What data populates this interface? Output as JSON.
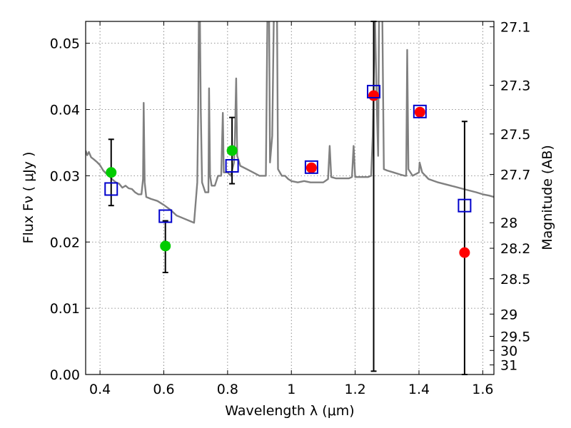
{
  "chart_data": {
    "type": "scatter",
    "xlabel": "Wavelength  λ (μm)",
    "ylabel": "Flux  Fν  ( μJy )",
    "y2label": "Magnitude (AB)",
    "xlim": [
      0.355,
      1.635
    ],
    "ylim": [
      0.0,
      0.0533
    ],
    "x_ticks": [
      "0.4",
      "0.6",
      "0.8",
      "1",
      "1.2",
      "1.4",
      "1.6"
    ],
    "y_ticks": [
      "0.00",
      "0.01",
      "0.02",
      "0.03",
      "0.04",
      "0.05"
    ],
    "y2_ticks": [
      "27.1",
      "27.3",
      "27.5",
      "27.7",
      "28",
      "28.2",
      "28.5",
      "29",
      "29.5",
      "30",
      "31"
    ],
    "grid": true,
    "colors": {
      "model": "#808080",
      "hst_detection": "#00cc00",
      "ground_detection": "#ff0000",
      "model_photometry": "#0000cc",
      "errorbar": "#000000"
    },
    "model_spectrum": [
      [
        0.355,
        0.0338
      ],
      [
        0.36,
        0.0331
      ],
      [
        0.365,
        0.0336
      ],
      [
        0.372,
        0.0328
      ],
      [
        0.38,
        0.0325
      ],
      [
        0.39,
        0.0321
      ],
      [
        0.4,
        0.0316
      ],
      [
        0.41,
        0.0308
      ],
      [
        0.42,
        0.0303
      ],
      [
        0.43,
        0.0299
      ],
      [
        0.44,
        0.0294
      ],
      [
        0.45,
        0.029
      ],
      [
        0.46,
        0.0288
      ],
      [
        0.47,
        0.0282
      ],
      [
        0.48,
        0.0285
      ],
      [
        0.49,
        0.0281
      ],
      [
        0.5,
        0.028
      ],
      [
        0.51,
        0.0275
      ],
      [
        0.52,
        0.0272
      ],
      [
        0.53,
        0.0272
      ],
      [
        0.535,
        0.0295
      ],
      [
        0.537,
        0.041
      ],
      [
        0.54,
        0.029
      ],
      [
        0.545,
        0.0268
      ],
      [
        0.56,
        0.0265
      ],
      [
        0.58,
        0.0262
      ],
      [
        0.6,
        0.0256
      ],
      [
        0.62,
        0.0249
      ],
      [
        0.64,
        0.024
      ],
      [
        0.66,
        0.0236
      ],
      [
        0.68,
        0.0232
      ],
      [
        0.695,
        0.0229
      ],
      [
        0.705,
        0.029
      ],
      [
        0.708,
        0.04
      ],
      [
        0.71,
        0.0545
      ],
      [
        0.713,
        0.0545
      ],
      [
        0.716,
        0.04
      ],
      [
        0.72,
        0.029
      ],
      [
        0.73,
        0.0275
      ],
      [
        0.74,
        0.0275
      ],
      [
        0.742,
        0.0432
      ],
      [
        0.745,
        0.03
      ],
      [
        0.75,
        0.0285
      ],
      [
        0.76,
        0.0285
      ],
      [
        0.77,
        0.03
      ],
      [
        0.78,
        0.03
      ],
      [
        0.785,
        0.0395
      ],
      [
        0.788,
        0.0305
      ],
      [
        0.8,
        0.0305
      ],
      [
        0.81,
        0.03
      ],
      [
        0.82,
        0.032
      ],
      [
        0.823,
        0.0357
      ],
      [
        0.827,
        0.0447
      ],
      [
        0.83,
        0.033
      ],
      [
        0.84,
        0.0315
      ],
      [
        0.86,
        0.031
      ],
      [
        0.88,
        0.0305
      ],
      [
        0.9,
        0.03
      ],
      [
        0.92,
        0.03
      ],
      [
        0.925,
        0.0545
      ],
      [
        0.93,
        0.0545
      ],
      [
        0.933,
        0.032
      ],
      [
        0.94,
        0.036
      ],
      [
        0.945,
        0.0545
      ],
      [
        0.955,
        0.0545
      ],
      [
        0.958,
        0.031
      ],
      [
        0.97,
        0.03
      ],
      [
        0.98,
        0.03
      ],
      [
        0.99,
        0.0295
      ],
      [
        1.0,
        0.0292
      ],
      [
        1.02,
        0.029
      ],
      [
        1.04,
        0.0292
      ],
      [
        1.06,
        0.029
      ],
      [
        1.08,
        0.029
      ],
      [
        1.1,
        0.029
      ],
      [
        1.115,
        0.0295
      ],
      [
        1.12,
        0.0345
      ],
      [
        1.125,
        0.0298
      ],
      [
        1.14,
        0.0296
      ],
      [
        1.16,
        0.0296
      ],
      [
        1.18,
        0.0296
      ],
      [
        1.19,
        0.0298
      ],
      [
        1.195,
        0.0345
      ],
      [
        1.2,
        0.0298
      ],
      [
        1.21,
        0.0298
      ],
      [
        1.22,
        0.0298
      ],
      [
        1.24,
        0.0298
      ],
      [
        1.25,
        0.03
      ],
      [
        1.255,
        0.036
      ],
      [
        1.262,
        0.0545
      ],
      [
        1.268,
        0.04
      ],
      [
        1.272,
        0.033
      ],
      [
        1.275,
        0.0545
      ],
      [
        1.285,
        0.0545
      ],
      [
        1.29,
        0.031
      ],
      [
        1.3,
        0.0308
      ],
      [
        1.32,
        0.0305
      ],
      [
        1.34,
        0.0302
      ],
      [
        1.355,
        0.03
      ],
      [
        1.36,
        0.03
      ],
      [
        1.363,
        0.049
      ],
      [
        1.367,
        0.031
      ],
      [
        1.38,
        0.03
      ],
      [
        1.4,
        0.0305
      ],
      [
        1.402,
        0.032
      ],
      [
        1.41,
        0.0305
      ],
      [
        1.43,
        0.0295
      ],
      [
        1.46,
        0.029
      ],
      [
        1.5,
        0.0285
      ],
      [
        1.54,
        0.028
      ],
      [
        1.58,
        0.0275
      ],
      [
        1.6,
        0.0272
      ],
      [
        1.62,
        0.027
      ],
      [
        1.635,
        0.0268
      ]
    ],
    "detections_green": [
      {
        "x": 0.435,
        "y": 0.0305,
        "err_lo": 0.0255,
        "err_hi": 0.0355
      },
      {
        "x": 0.605,
        "y": 0.0194,
        "err_lo": 0.0154,
        "err_hi": 0.0232
      },
      {
        "x": 0.814,
        "y": 0.0338,
        "err_lo": 0.0288,
        "err_hi": 0.0388
      }
    ],
    "detections_red": [
      {
        "x": 1.063,
        "y": 0.0312
      },
      {
        "x": 1.258,
        "y": 0.0421,
        "err_lo": 0.0005,
        "err_hi": 0.0533
      },
      {
        "x": 1.403,
        "y": 0.0396
      },
      {
        "x": 1.543,
        "y": 0.0184,
        "err_lo": 0.0,
        "err_hi": 0.0382
      }
    ],
    "model_photometry": [
      {
        "x": 0.435,
        "y": 0.028
      },
      {
        "x": 0.605,
        "y": 0.0239
      },
      {
        "x": 0.814,
        "y": 0.0315
      },
      {
        "x": 1.063,
        "y": 0.0313
      },
      {
        "x": 1.258,
        "y": 0.0427
      },
      {
        "x": 1.403,
        "y": 0.0397
      },
      {
        "x": 1.543,
        "y": 0.0255
      }
    ]
  }
}
